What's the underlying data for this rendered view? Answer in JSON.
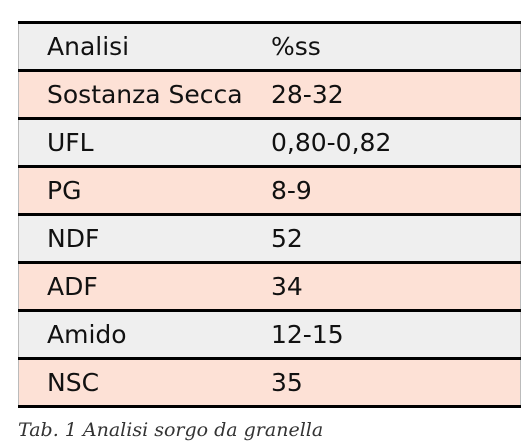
{
  "table": {
    "header": [
      "Analisi",
      "%ss"
    ],
    "rows": [
      [
        "Sostanza Secca",
        "28-32"
      ],
      [
        "UFL",
        "0,80-0,82"
      ],
      [
        "PG",
        "8-9"
      ],
      [
        "NDF",
        "52"
      ],
      [
        "ADF",
        "34"
      ],
      [
        "Amido",
        "12-15"
      ],
      [
        "NSC",
        "35"
      ]
    ]
  },
  "caption": "Tab. 1 Analisi sorgo da granella"
}
